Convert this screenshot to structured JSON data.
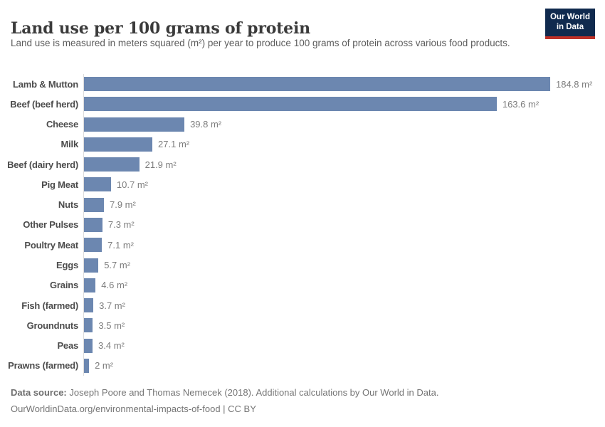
{
  "header": {
    "title": "Land use per 100 grams of protein",
    "subtitle": "Land use is measured in meters squared (m²) per year to produce 100 grams of protein across various food products.",
    "logo": {
      "line1": "Our World",
      "line2": "in Data",
      "bg_color": "#102a4e",
      "accent_color": "#be3027"
    }
  },
  "chart_data": {
    "type": "bar",
    "orientation": "horizontal",
    "title": "Land use per 100 grams of protein",
    "unit": "m²",
    "categories": [
      "Lamb & Mutton",
      "Beef (beef herd)",
      "Cheese",
      "Milk",
      "Beef (dairy herd)",
      "Pig Meat",
      "Nuts",
      "Other Pulses",
      "Poultry Meat",
      "Eggs",
      "Grains",
      "Fish (farmed)",
      "Groundnuts",
      "Peas",
      "Prawns (farmed)"
    ],
    "values": [
      184.8,
      163.6,
      39.8,
      27.1,
      21.9,
      10.7,
      7.9,
      7.3,
      7.1,
      5.7,
      4.6,
      3.7,
      3.5,
      3.4,
      2
    ],
    "value_labels": [
      "184.8 m²",
      "163.6 m²",
      "39.8 m²",
      "27.1 m²",
      "21.9 m²",
      "10.7 m²",
      "7.9 m²",
      "7.3 m²",
      "7.1 m²",
      "5.7 m²",
      "4.6 m²",
      "3.7 m²",
      "3.5 m²",
      "3.4 m²",
      "2 m²"
    ],
    "xlim": [
      0,
      185
    ],
    "grid": false,
    "legend": "none",
    "bar_color": "#6c87b0",
    "axis_color": "#dcdcdc"
  },
  "footer": {
    "source_label": "Data source:",
    "source_text": " Joseph Poore and Thomas Nemecek (2018). Additional calculations by Our World in Data.",
    "link_line": "OurWorldinData.org/environmental-impacts-of-food | CC BY"
  }
}
